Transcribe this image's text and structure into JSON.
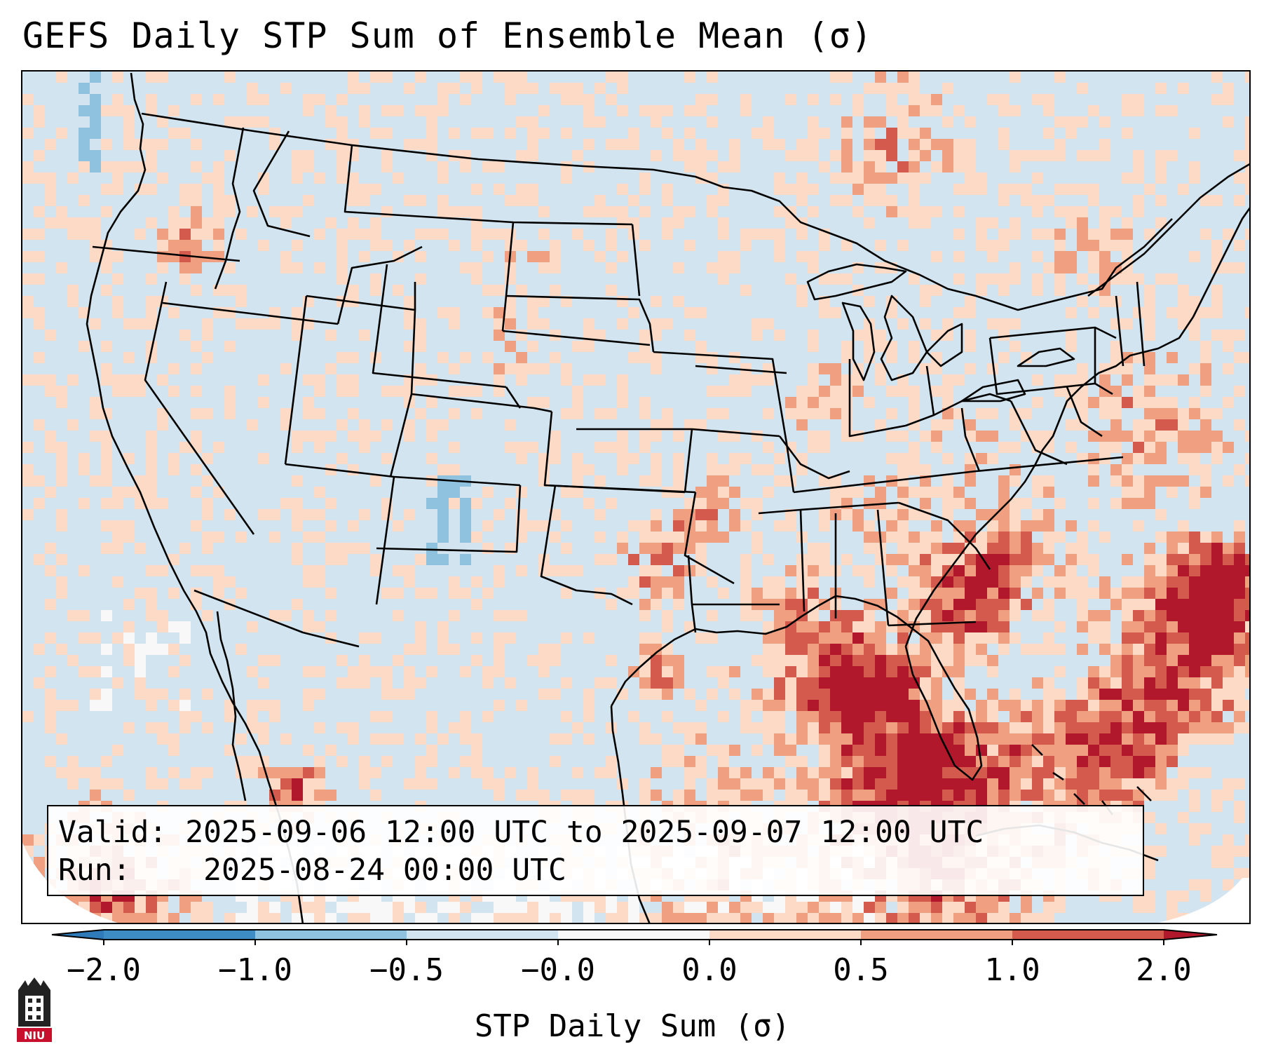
{
  "title": "GEFS Daily STP Sum of Ensemble Mean (σ)",
  "info": {
    "valid_label": "Valid:",
    "valid_value": "2025-09-06 12:00 UTC to 2025-09-07 12:00 UTC",
    "run_label": "Run:",
    "run_value": "2025-08-24 00:00 UTC"
  },
  "colorbar": {
    "label": "STP Daily Sum (σ)",
    "ticks": [
      "−2.0",
      "−1.0",
      "−0.5",
      "−0.0",
      "0.0",
      "0.5",
      "1.0",
      "2.0"
    ],
    "colors": [
      "#2f7ab8",
      "#3d8cc4",
      "#8fc2de",
      "#d2e4ef",
      "#f8f8f8",
      "#fddac6",
      "#f0a080",
      "#d45a4e",
      "#b2182b"
    ]
  },
  "map": {
    "region": "Contiguous United States, southern Canada, northern Mexico, Gulf of Mexico and western Atlantic",
    "background_color": "#d2e4ef",
    "boundary_color": "#000000"
  },
  "logo": {
    "text": "NIU"
  }
}
